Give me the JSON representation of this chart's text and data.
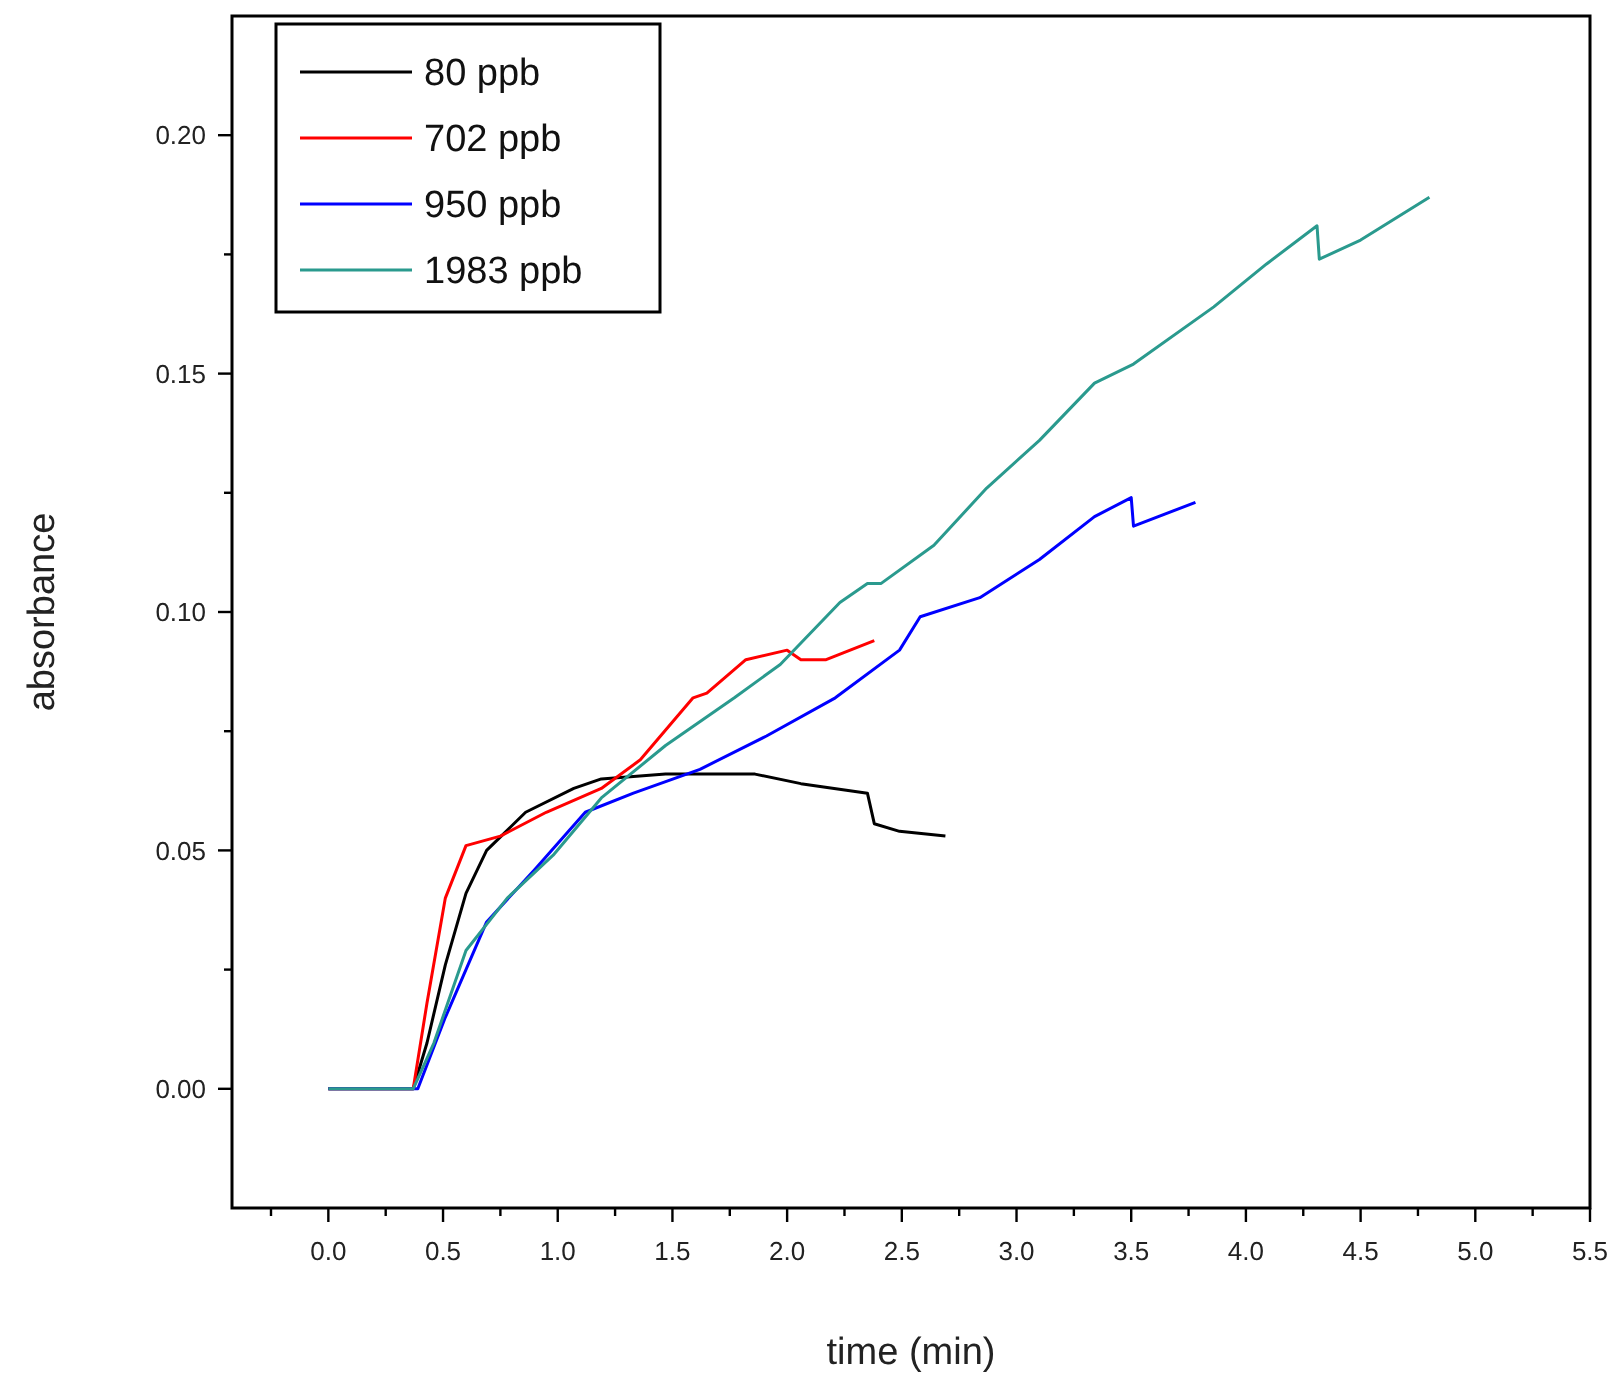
{
  "chart_data": {
    "type": "line",
    "xlabel": "time (min)",
    "ylabel": "absorbance",
    "xlim": [
      -0.42,
      5.5
    ],
    "xticks": [
      {
        "value": -0.25,
        "label": null
      },
      {
        "value": 0,
        "label": "0.0"
      },
      0.5,
      {
        "value": 1,
        "label": "1.0"
      },
      1.5,
      {
        "value": 2,
        "label": "2.0"
      },
      2.5,
      {
        "value": 3,
        "label": "3.0"
      },
      3.5,
      {
        "value": 4,
        "label": "4.0"
      },
      4.5,
      {
        "value": 5,
        "label": "5.0"
      },
      5.5,
      {
        "value": 0.25,
        "label": null
      },
      {
        "value": 0.75,
        "label": null
      },
      {
        "value": 1.25,
        "label": null
      },
      {
        "value": 1.75,
        "label": null
      },
      {
        "value": 2.25,
        "label": null
      },
      {
        "value": 2.75,
        "label": null
      },
      {
        "value": 3.25,
        "label": null
      },
      {
        "value": 3.75,
        "label": null
      },
      {
        "value": 4.25,
        "label": null
      },
      {
        "value": 4.75,
        "label": null
      },
      {
        "value": 5.25,
        "label": null
      }
    ],
    "ylim": [
      -0.025,
      0.225
    ],
    "yticks": [
      {
        "value": 0,
        "label": "0.00"
      },
      {
        "value": 0.05,
        "label": "0.05"
      },
      {
        "value": 0.1,
        "label": "0.10"
      },
      {
        "value": 0.15,
        "label": "0.15"
      },
      {
        "value": 0.2,
        "label": "0.20"
      },
      {
        "value": 0.025,
        "label": null
      },
      {
        "value": 0.075,
        "label": null
      },
      {
        "value": 0.125,
        "label": null
      },
      {
        "value": 0.175,
        "label": null
      }
    ],
    "grid": false,
    "legend": "top left",
    "marker": "none",
    "line_style": "solid",
    "series": [
      {
        "name": "80 ppb",
        "color": "#000000",
        "x": [
          0,
          0.37,
          0.43,
          0.51,
          0.6,
          0.69,
          0.86,
          1.07,
          1.19,
          1.47,
          1.86,
          2.06,
          2.35,
          2.38,
          2.49,
          2.69
        ],
        "values": [
          0,
          0,
          0.0096,
          0.026,
          0.041,
          0.05,
          0.058,
          0.063,
          0.065,
          0.066,
          0.066,
          0.064,
          0.062,
          0.0556,
          0.054,
          0.053
        ]
      },
      {
        "name": "702 ppb",
        "color": "#ff0000",
        "x": [
          0,
          0.37,
          0.43,
          0.51,
          0.6,
          0.75,
          0.95,
          1.19,
          1.36,
          1.59,
          1.65,
          1.82,
          2.0,
          2.06,
          2.17,
          2.38
        ],
        "values": [
          0,
          0,
          0.018,
          0.04,
          0.051,
          0.053,
          0.058,
          0.063,
          0.069,
          0.082,
          0.083,
          0.09,
          0.092,
          0.09,
          0.09,
          0.094
        ]
      },
      {
        "name": "950 ppb",
        "color": "#0000ff",
        "x": [
          0,
          0.39,
          0.51,
          0.69,
          0.9,
          1.12,
          1.33,
          1.62,
          1.91,
          2.21,
          2.49,
          2.58,
          2.84,
          3.1,
          3.34,
          3.5,
          3.51,
          3.78
        ],
        "values": [
          0,
          0,
          0.015,
          0.035,
          0.046,
          0.058,
          0.062,
          0.067,
          0.074,
          0.082,
          0.092,
          0.099,
          0.103,
          0.111,
          0.12,
          0.124,
          0.118,
          0.123
        ]
      },
      {
        "name": "1983 ppb",
        "color": "#2a9a8e",
        "x": [
          0,
          0.37,
          0.46,
          0.6,
          0.78,
          0.98,
          1.19,
          1.47,
          1.77,
          1.97,
          2.23,
          2.35,
          2.41,
          2.64,
          2.87,
          3.1,
          3.34,
          3.51,
          3.86,
          4.09,
          4.31,
          4.32,
          4.5,
          4.8
        ],
        "values": [
          0,
          0,
          0.0096,
          0.029,
          0.04,
          0.049,
          0.061,
          0.072,
          0.082,
          0.089,
          0.102,
          0.106,
          0.106,
          0.114,
          0.126,
          0.136,
          0.148,
          0.152,
          0.164,
          0.173,
          0.181,
          0.174,
          0.178,
          0.187
        ]
      }
    ]
  }
}
